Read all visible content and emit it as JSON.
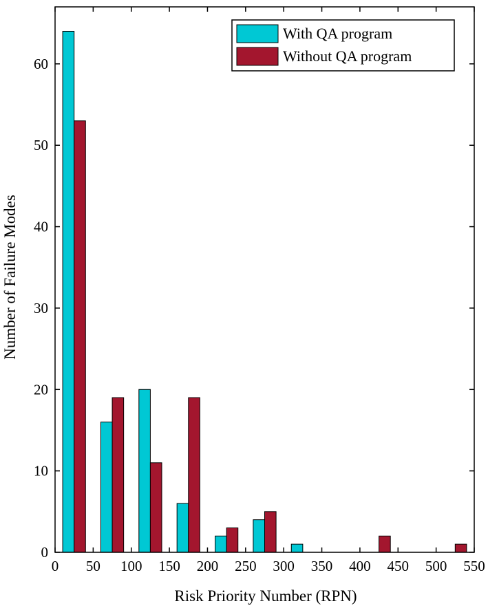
{
  "chart_data": {
    "type": "bar",
    "xlabel": "Risk Priority Number (RPN)",
    "ylabel": "Number of Failure Modes",
    "xlim": [
      0,
      550
    ],
    "ylim": [
      0,
      67
    ],
    "xticks": [
      0,
      50,
      100,
      150,
      200,
      250,
      300,
      350,
      400,
      450,
      500,
      550
    ],
    "yticks": [
      0,
      10,
      20,
      30,
      40,
      50,
      60
    ],
    "bin_centers": [
      25,
      75,
      125,
      175,
      225,
      275,
      325,
      375,
      425,
      475,
      525
    ],
    "legend_position": "top-right",
    "series": [
      {
        "name": "With QA program",
        "color": "#00c8d4",
        "values": [
          64,
          16,
          20,
          6,
          2,
          4,
          1,
          0,
          0,
          0,
          0
        ]
      },
      {
        "name": "Without QA program",
        "color": "#a3162e",
        "values": [
          53,
          19,
          11,
          19,
          3,
          5,
          0,
          0,
          2,
          0,
          1
        ]
      }
    ]
  }
}
